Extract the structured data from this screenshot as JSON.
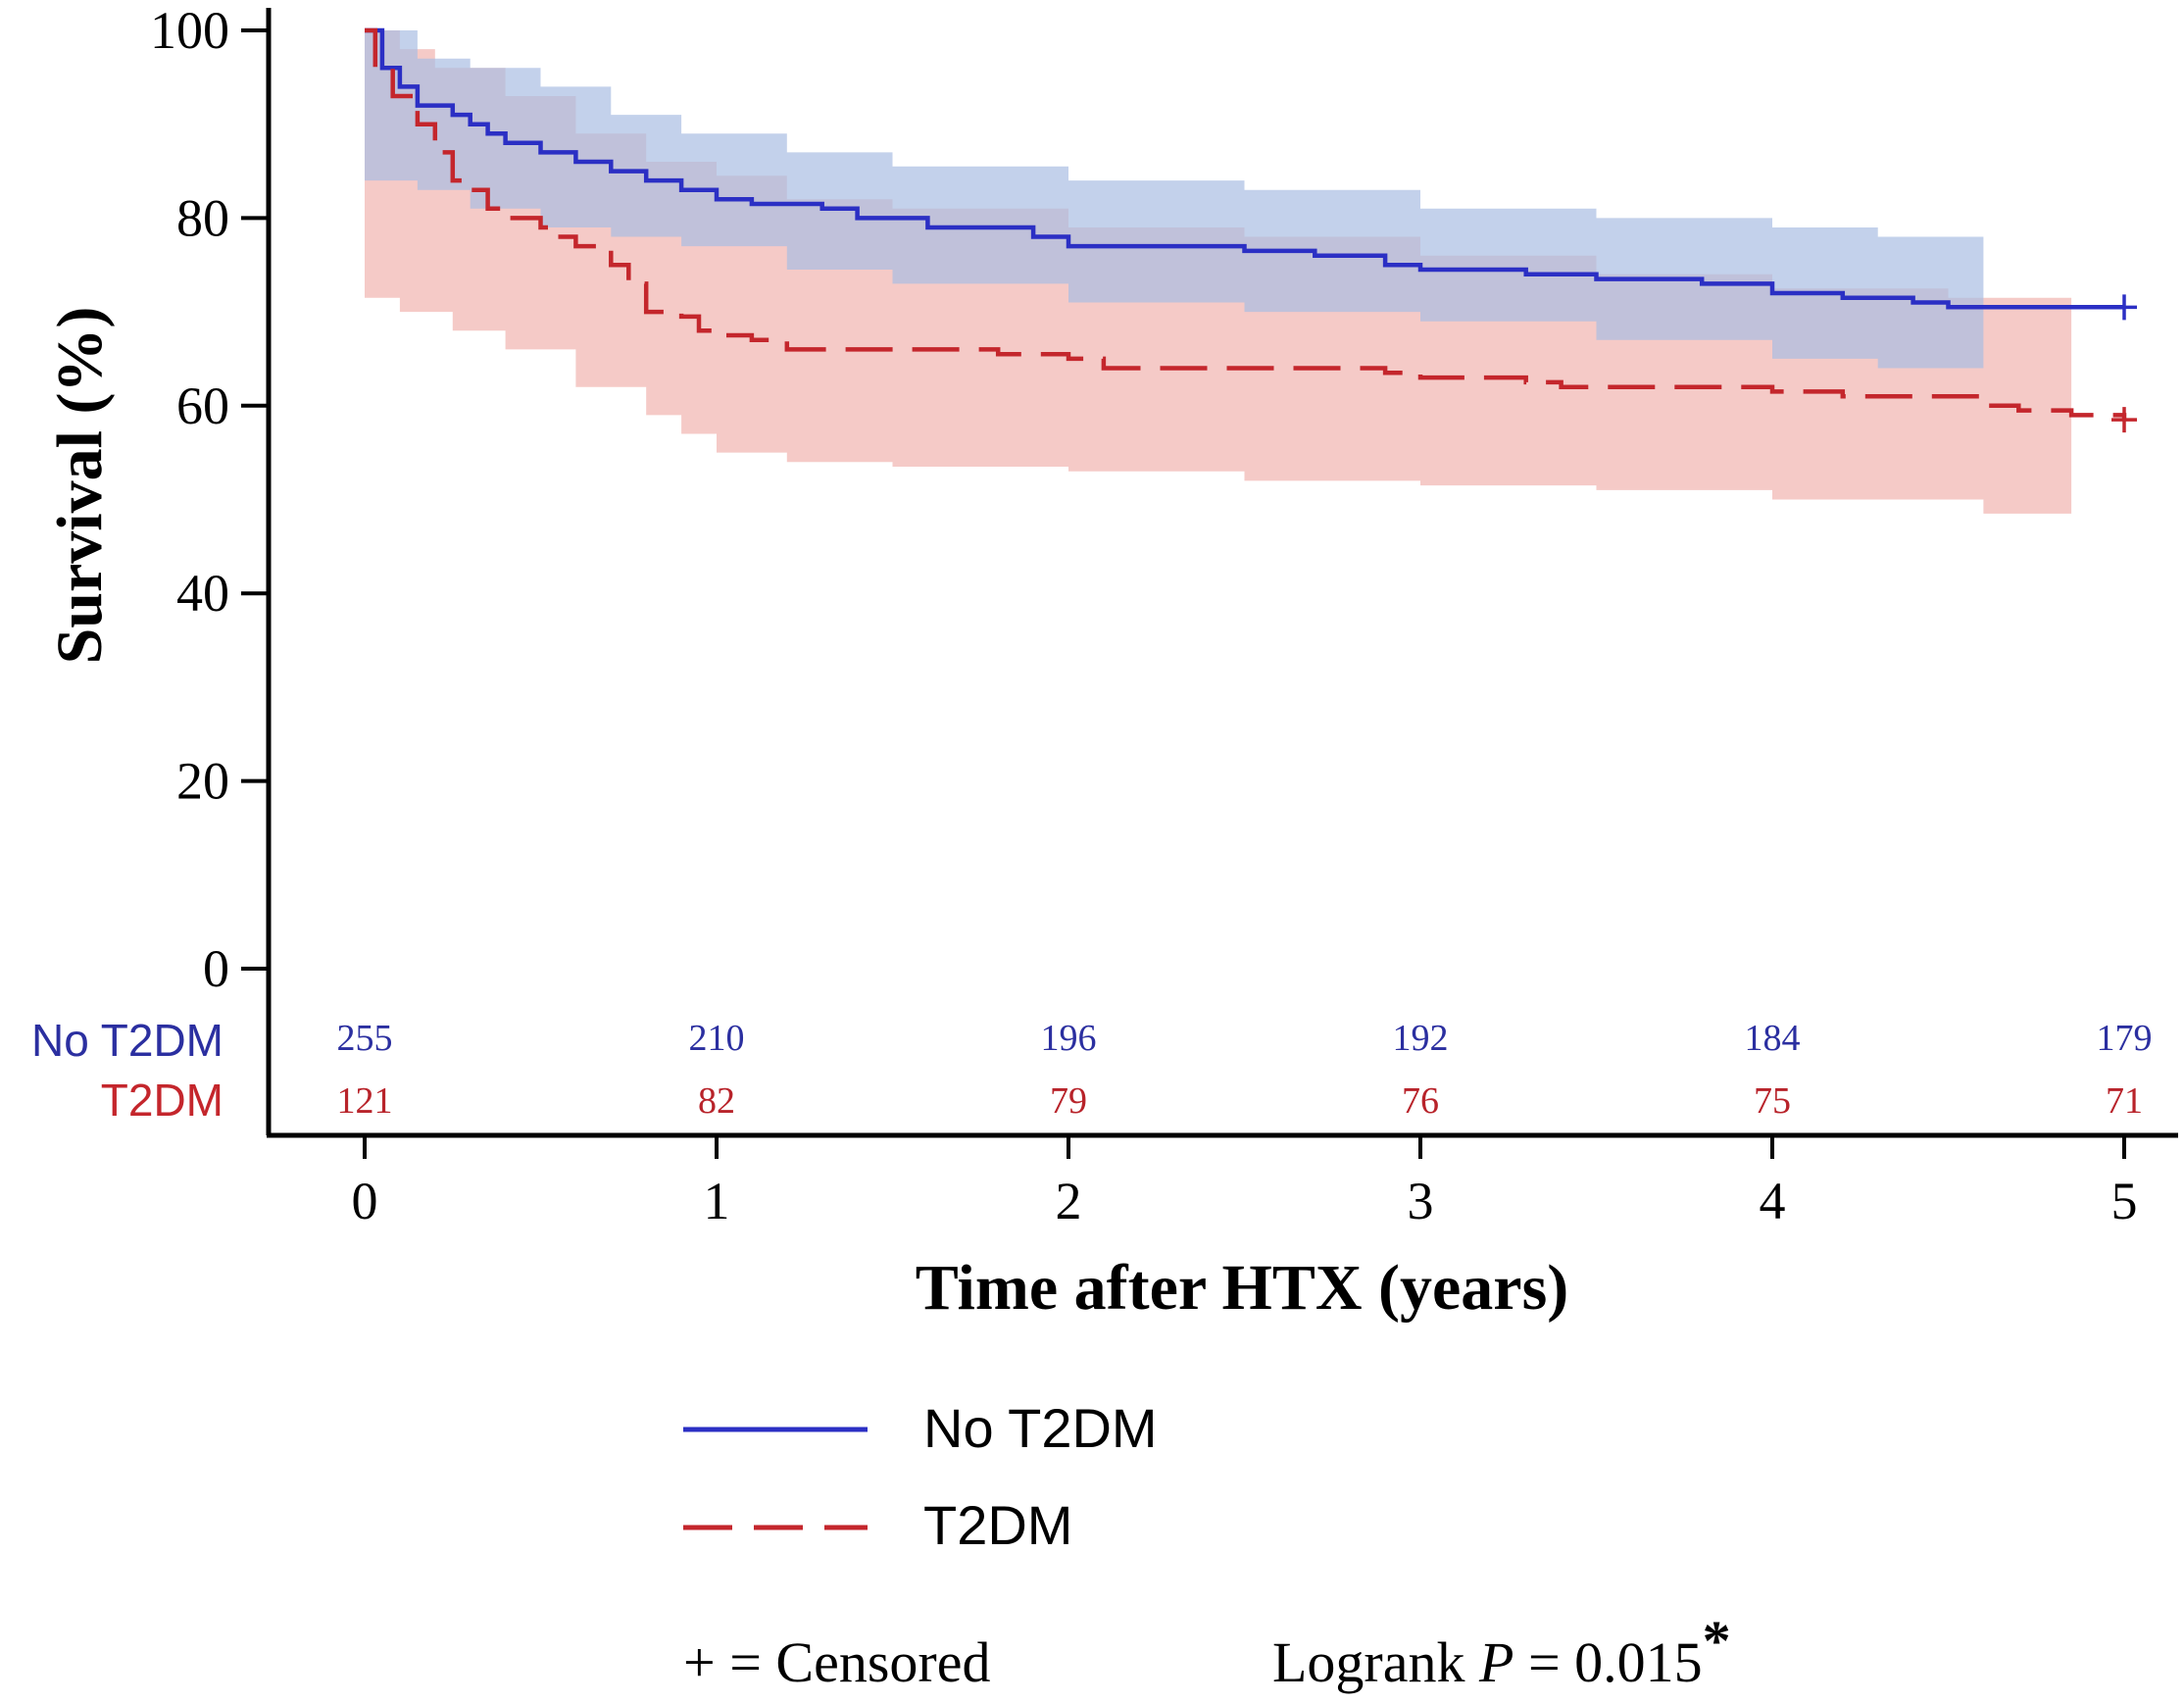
{
  "chart_data": {
    "type": "line",
    "subtype": "kaplan-meier",
    "xlabel": "Time after HTX (years)",
    "ylabel": "Survival (%)",
    "xlim": [
      0,
      5
    ],
    "ylim": [
      0,
      100
    ],
    "x_ticks": [
      "0",
      "1",
      "2",
      "3",
      "4",
      "5"
    ],
    "y_ticks": [
      "0",
      "20",
      "40",
      "60",
      "80",
      "100"
    ],
    "grid": false,
    "series": [
      {
        "name": "No T2DM",
        "color": "#2b2fc4",
        "band_color": "#a9bde3",
        "style": "solid",
        "points": [
          [
            0,
            100
          ],
          [
            0.05,
            96
          ],
          [
            0.1,
            94
          ],
          [
            0.15,
            92
          ],
          [
            0.25,
            91
          ],
          [
            0.3,
            90
          ],
          [
            0.35,
            89
          ],
          [
            0.4,
            88
          ],
          [
            0.5,
            87
          ],
          [
            0.6,
            86
          ],
          [
            0.7,
            85
          ],
          [
            0.8,
            84
          ],
          [
            0.9,
            83
          ],
          [
            1.0,
            82
          ],
          [
            1.1,
            81.5
          ],
          [
            1.3,
            81
          ],
          [
            1.4,
            80
          ],
          [
            1.6,
            79
          ],
          [
            1.9,
            78
          ],
          [
            2.0,
            77
          ],
          [
            2.5,
            76.5
          ],
          [
            2.7,
            76
          ],
          [
            2.9,
            75
          ],
          [
            3.0,
            74.5
          ],
          [
            3.3,
            74
          ],
          [
            3.5,
            73.5
          ],
          [
            3.8,
            73
          ],
          [
            4.0,
            72
          ],
          [
            4.2,
            71.5
          ],
          [
            4.4,
            71
          ],
          [
            4.5,
            70.5
          ],
          [
            5.0,
            70.5
          ]
        ],
        "ci_upper": [
          [
            0,
            100
          ],
          [
            0.15,
            97
          ],
          [
            0.3,
            96
          ],
          [
            0.5,
            94
          ],
          [
            0.7,
            91
          ],
          [
            0.9,
            89
          ],
          [
            1.2,
            87
          ],
          [
            1.5,
            85.5
          ],
          [
            2.0,
            84
          ],
          [
            2.5,
            83
          ],
          [
            3.0,
            81
          ],
          [
            3.5,
            80
          ],
          [
            4.0,
            79
          ],
          [
            4.3,
            78
          ],
          [
            4.6,
            77
          ]
        ],
        "ci_lower": [
          [
            0,
            84
          ],
          [
            0.15,
            83
          ],
          [
            0.3,
            81
          ],
          [
            0.5,
            79
          ],
          [
            0.7,
            78
          ],
          [
            0.9,
            77
          ],
          [
            1.2,
            74.5
          ],
          [
            1.5,
            73
          ],
          [
            2.0,
            71
          ],
          [
            2.5,
            70
          ],
          [
            3.0,
            69
          ],
          [
            3.5,
            67
          ],
          [
            4.0,
            65
          ],
          [
            4.3,
            64
          ],
          [
            4.6,
            63
          ]
        ],
        "censored": [
          [
            5.0,
            70.5
          ]
        ],
        "at_risk": [
          "255",
          "210",
          "196",
          "192",
          "184",
          "179"
        ]
      },
      {
        "name": "T2DM",
        "color": "#c4262c",
        "band_color": "#f1b3af",
        "style": "dashed",
        "points": [
          [
            0,
            100
          ],
          [
            0.03,
            96
          ],
          [
            0.08,
            93
          ],
          [
            0.15,
            90
          ],
          [
            0.2,
            87
          ],
          [
            0.25,
            84
          ],
          [
            0.3,
            83
          ],
          [
            0.35,
            81
          ],
          [
            0.4,
            80
          ],
          [
            0.5,
            79
          ],
          [
            0.55,
            78
          ],
          [
            0.6,
            77
          ],
          [
            0.7,
            75
          ],
          [
            0.75,
            73
          ],
          [
            0.8,
            71
          ],
          [
            0.8,
            70
          ],
          [
            0.9,
            69.5
          ],
          [
            0.95,
            68
          ],
          [
            1.0,
            67.5
          ],
          [
            1.1,
            67
          ],
          [
            1.2,
            66
          ],
          [
            1.5,
            66
          ],
          [
            1.7,
            66
          ],
          [
            1.8,
            65.5
          ],
          [
            2.0,
            65
          ],
          [
            2.1,
            64
          ],
          [
            2.5,
            64
          ],
          [
            2.9,
            63.5
          ],
          [
            3.0,
            63
          ],
          [
            3.3,
            62.5
          ],
          [
            3.4,
            62
          ],
          [
            3.8,
            62
          ],
          [
            4.0,
            61.5
          ],
          [
            4.2,
            61
          ],
          [
            4.4,
            61
          ],
          [
            4.6,
            60
          ],
          [
            4.7,
            59.5
          ],
          [
            4.85,
            59
          ],
          [
            5.0,
            58.5
          ]
        ],
        "ci_upper": [
          [
            0,
            100
          ],
          [
            0.1,
            98
          ],
          [
            0.2,
            96
          ],
          [
            0.4,
            93
          ],
          [
            0.6,
            89
          ],
          [
            0.8,
            86
          ],
          [
            1.0,
            84.5
          ],
          [
            1.2,
            82
          ],
          [
            1.5,
            81
          ],
          [
            2.0,
            79
          ],
          [
            2.5,
            78
          ],
          [
            3.0,
            76
          ],
          [
            3.5,
            74
          ],
          [
            4.0,
            72.5
          ],
          [
            4.5,
            71.5
          ],
          [
            4.85,
            69.5
          ]
        ],
        "ci_lower": [
          [
            0,
            71.5
          ],
          [
            0.1,
            70
          ],
          [
            0.25,
            68
          ],
          [
            0.4,
            66
          ],
          [
            0.6,
            62
          ],
          [
            0.8,
            59
          ],
          [
            0.9,
            57
          ],
          [
            1.0,
            55
          ],
          [
            1.2,
            54
          ],
          [
            1.5,
            53.5
          ],
          [
            2.0,
            53
          ],
          [
            2.5,
            52
          ],
          [
            3.0,
            51.5
          ],
          [
            3.5,
            51
          ],
          [
            4.0,
            50
          ],
          [
            4.6,
            48.5
          ],
          [
            4.85,
            48
          ]
        ],
        "censored": [
          [
            5.0,
            58.5
          ]
        ],
        "at_risk": [
          "121",
          "82",
          "79",
          "76",
          "75",
          "71"
        ]
      }
    ],
    "risk_table_labels": [
      "No T2DM",
      "T2DM"
    ],
    "legend": {
      "entries": [
        "No T2DM",
        "T2DM"
      ]
    },
    "annotations": {
      "censored_note": "+ = Censored",
      "logrank_prefix": "Logrank ",
      "logrank_p": "P",
      "logrank_value": " = 0.015",
      "logrank_star": "*"
    }
  }
}
